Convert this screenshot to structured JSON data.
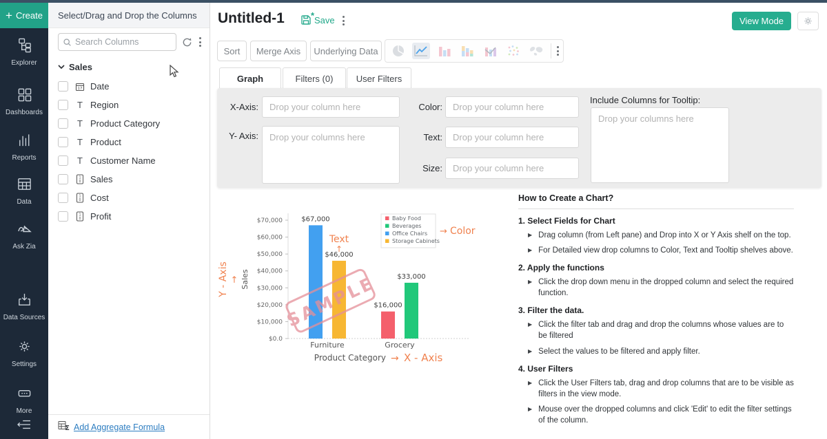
{
  "colors": {
    "accent": "#21a88a",
    "sidebar_bg": "#1d2938",
    "orange": "#f0824f",
    "link_blue": "#2d7dc1"
  },
  "sidebar": {
    "create_label": "Create",
    "items": [
      {
        "label": "Explorer"
      },
      {
        "label": "Dashboards"
      },
      {
        "label": "Reports"
      },
      {
        "label": "Data"
      },
      {
        "label": "Ask Zia"
      },
      {
        "label": "Data Sources"
      },
      {
        "label": "Settings"
      },
      {
        "label": "More"
      }
    ]
  },
  "columns_panel": {
    "header": "Select/Drag and Drop the Columns",
    "search_placeholder": "Search Columns",
    "group_label": "Sales",
    "columns": [
      {
        "name": "Date",
        "type": "date"
      },
      {
        "name": "Region",
        "type": "text"
      },
      {
        "name": "Product Category",
        "type": "text"
      },
      {
        "name": "Product",
        "type": "text"
      },
      {
        "name": "Customer Name",
        "type": "text"
      },
      {
        "name": "Sales",
        "type": "number"
      },
      {
        "name": "Cost",
        "type": "number"
      },
      {
        "name": "Profit",
        "type": "number"
      }
    ],
    "footer_link": "Add Aggregate Formula"
  },
  "header": {
    "title": "Untitled-1",
    "save_label": "Save",
    "view_mode_label": "View Mode"
  },
  "toolbar": {
    "sort_label": "Sort",
    "merge_axis_label": "Merge Axis",
    "underlying_data_label": "Underlying Data",
    "chart_types": [
      "pie",
      "line",
      "bar",
      "stacked-bar",
      "bar-line",
      "scatter",
      "map"
    ]
  },
  "tabs": {
    "graph": "Graph",
    "filters": "Filters (0)",
    "user_filters": "User Filters"
  },
  "shelves": {
    "x_axis_label": "X-Axis:",
    "x_axis_placeholder": "Drop your column here",
    "y_axis_label": "Y- Axis:",
    "y_axis_placeholder": "Drop your columns here",
    "color_label": "Color:",
    "color_placeholder": "Drop your column here",
    "text_label": "Text:",
    "text_placeholder": "Drop your column here",
    "size_label": "Size:",
    "size_placeholder": "Drop your column here",
    "tooltip_label": "Include Columns for Tooltip:",
    "tooltip_placeholder": "Drop your columns here"
  },
  "chart_data": {
    "type": "bar",
    "categories": [
      "Furniture",
      "Grocery"
    ],
    "bars": [
      {
        "category": "Furniture",
        "name": "Office Chairs",
        "value": 67000,
        "label": "$67,000",
        "color": "#42a0f0"
      },
      {
        "category": "Furniture",
        "name": "Storage Cabinets",
        "value": 46000,
        "label": "$46,000",
        "color": "#f7b733"
      },
      {
        "category": "Grocery",
        "name": "Baby Food",
        "value": 16000,
        "label": "$16,000",
        "color": "#f4606c"
      },
      {
        "category": "Grocery",
        "name": "Beverages",
        "value": 33000,
        "label": "$33,000",
        "color": "#21c87a"
      }
    ],
    "legend": [
      {
        "name": "Baby Food",
        "color": "#f4606c"
      },
      {
        "name": "Beverages",
        "color": "#21c87a"
      },
      {
        "name": "Office Chairs",
        "color": "#42a0f0"
      },
      {
        "name": "Storage Cabinets",
        "color": "#f7b733"
      }
    ],
    "y_ticks": [
      "$0.0",
      "$10,000",
      "$20,000",
      "$30,000",
      "$40,000",
      "$50,000",
      "$60,000",
      "$70,000"
    ],
    "ylim": [
      0,
      70000
    ],
    "xlabel": "Product Category",
    "ylabel": "Sales",
    "legend_position": "top-right",
    "grid": false,
    "annotations": {
      "y_axis": "Y - Axis",
      "x_axis": "X - Axis",
      "text": "Text",
      "color": "Color",
      "watermark": "SAMPLE"
    }
  },
  "instructions": {
    "title": "How to Create a Chart?",
    "steps": [
      {
        "heading": "1. Select Fields for Chart",
        "bullets": [
          "Drag column (from Left pane) and Drop into X or Y Axis shelf on the top.",
          "For Detailed view drop columns to Color, Text and Tooltip shelves above."
        ]
      },
      {
        "heading": "2. Apply the functions",
        "bullets": [
          "Click the drop down menu in the dropped column and select the required function."
        ]
      },
      {
        "heading": "3. Filter the data.",
        "bullets": [
          "Click the filter tab and drag and drop the columns whose values are to be filtered",
          "Select the values to be filtered and apply filter."
        ]
      },
      {
        "heading": "4. User Filters",
        "bullets": [
          "Click the User Filters tab, drag and drop columns that are to be visible as filters in the view mode.",
          "Mouse over the dropped columns and click 'Edit' to edit the filter settings of the column."
        ]
      }
    ]
  }
}
